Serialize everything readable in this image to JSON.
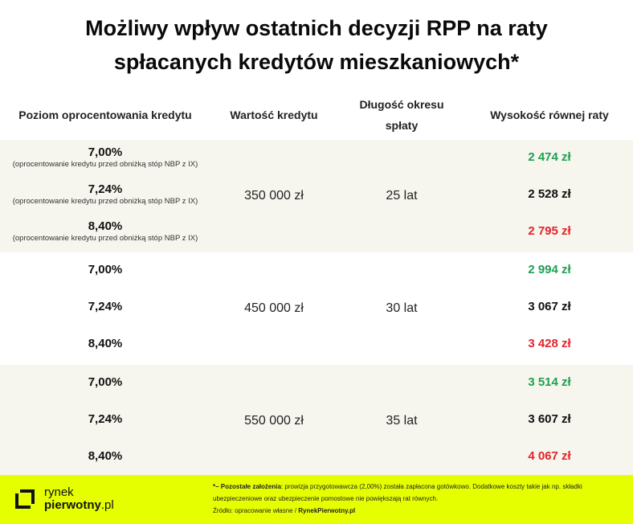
{
  "title": {
    "line1": "Możliwy wpływ ostatnich decyzji RPP na raty",
    "line2": "spłacanych kredytów mieszkaniowych*"
  },
  "columns": {
    "rate": "Poziom oprocentowania kredytu",
    "amount": "Wartość kredytu",
    "period": "Długość okresu spłaty",
    "installment": "Wysokość równej raty"
  },
  "groups": [
    {
      "amount": "350 000 zł",
      "period": "25 lat",
      "rows": [
        {
          "rate": "7,00%",
          "note": "(oprocentowanie kredytu przed obniżką stóp NBP z IX)",
          "installment": "2 474 zł",
          "color": "#1ea050"
        },
        {
          "rate": "7,24%",
          "note": "(oprocentowanie kredytu przed obniżką stóp NBP z IX)",
          "installment": "2 528 zł",
          "color": "#111111"
        },
        {
          "rate": "8,40%",
          "note": "(oprocentowanie kredytu przed obniżką stóp NBP z IX)",
          "installment": "2 795 zł",
          "color": "#e3242b"
        }
      ]
    },
    {
      "amount": "450 000 zł",
      "period": "30 lat",
      "rows": [
        {
          "rate": "7,00%",
          "installment": "2 994 zł",
          "color": "#1ea050"
        },
        {
          "rate": "7,24%",
          "installment": "3 067 zł",
          "color": "#111111"
        },
        {
          "rate": "8,40%",
          "installment": "3 428 zł",
          "color": "#e3242b"
        }
      ]
    },
    {
      "amount": "550 000 zł",
      "period": "35 lat",
      "rows": [
        {
          "rate": "7,00%",
          "installment": "3 514 zł",
          "color": "#1ea050"
        },
        {
          "rate": "7,24%",
          "installment": "3 607 zł",
          "color": "#111111"
        },
        {
          "rate": "8,40%",
          "installment": "4 067 zł",
          "color": "#e3242b"
        }
      ]
    }
  ],
  "footer": {
    "logo_line1": "rynek",
    "logo_line2": "pierwotny",
    "logo_tld": ".pl",
    "logo_icon": "bracket-square-icon",
    "assumptions_label": "*– Pozostałe założenia",
    "assumptions_text": ": prowizja przygotowawcza (2,00%) została zapłacona gotówkowo. Dodatkowe koszty takie jak np. składki ubezpieczeniowe oraz ubezpieczenie pomostowe nie powiększają rat równych.",
    "source_label": "Źródło: opracowanie własne / ",
    "source_value": "RynekPierwotny.pl",
    "accent_color": "#e6ff00"
  }
}
